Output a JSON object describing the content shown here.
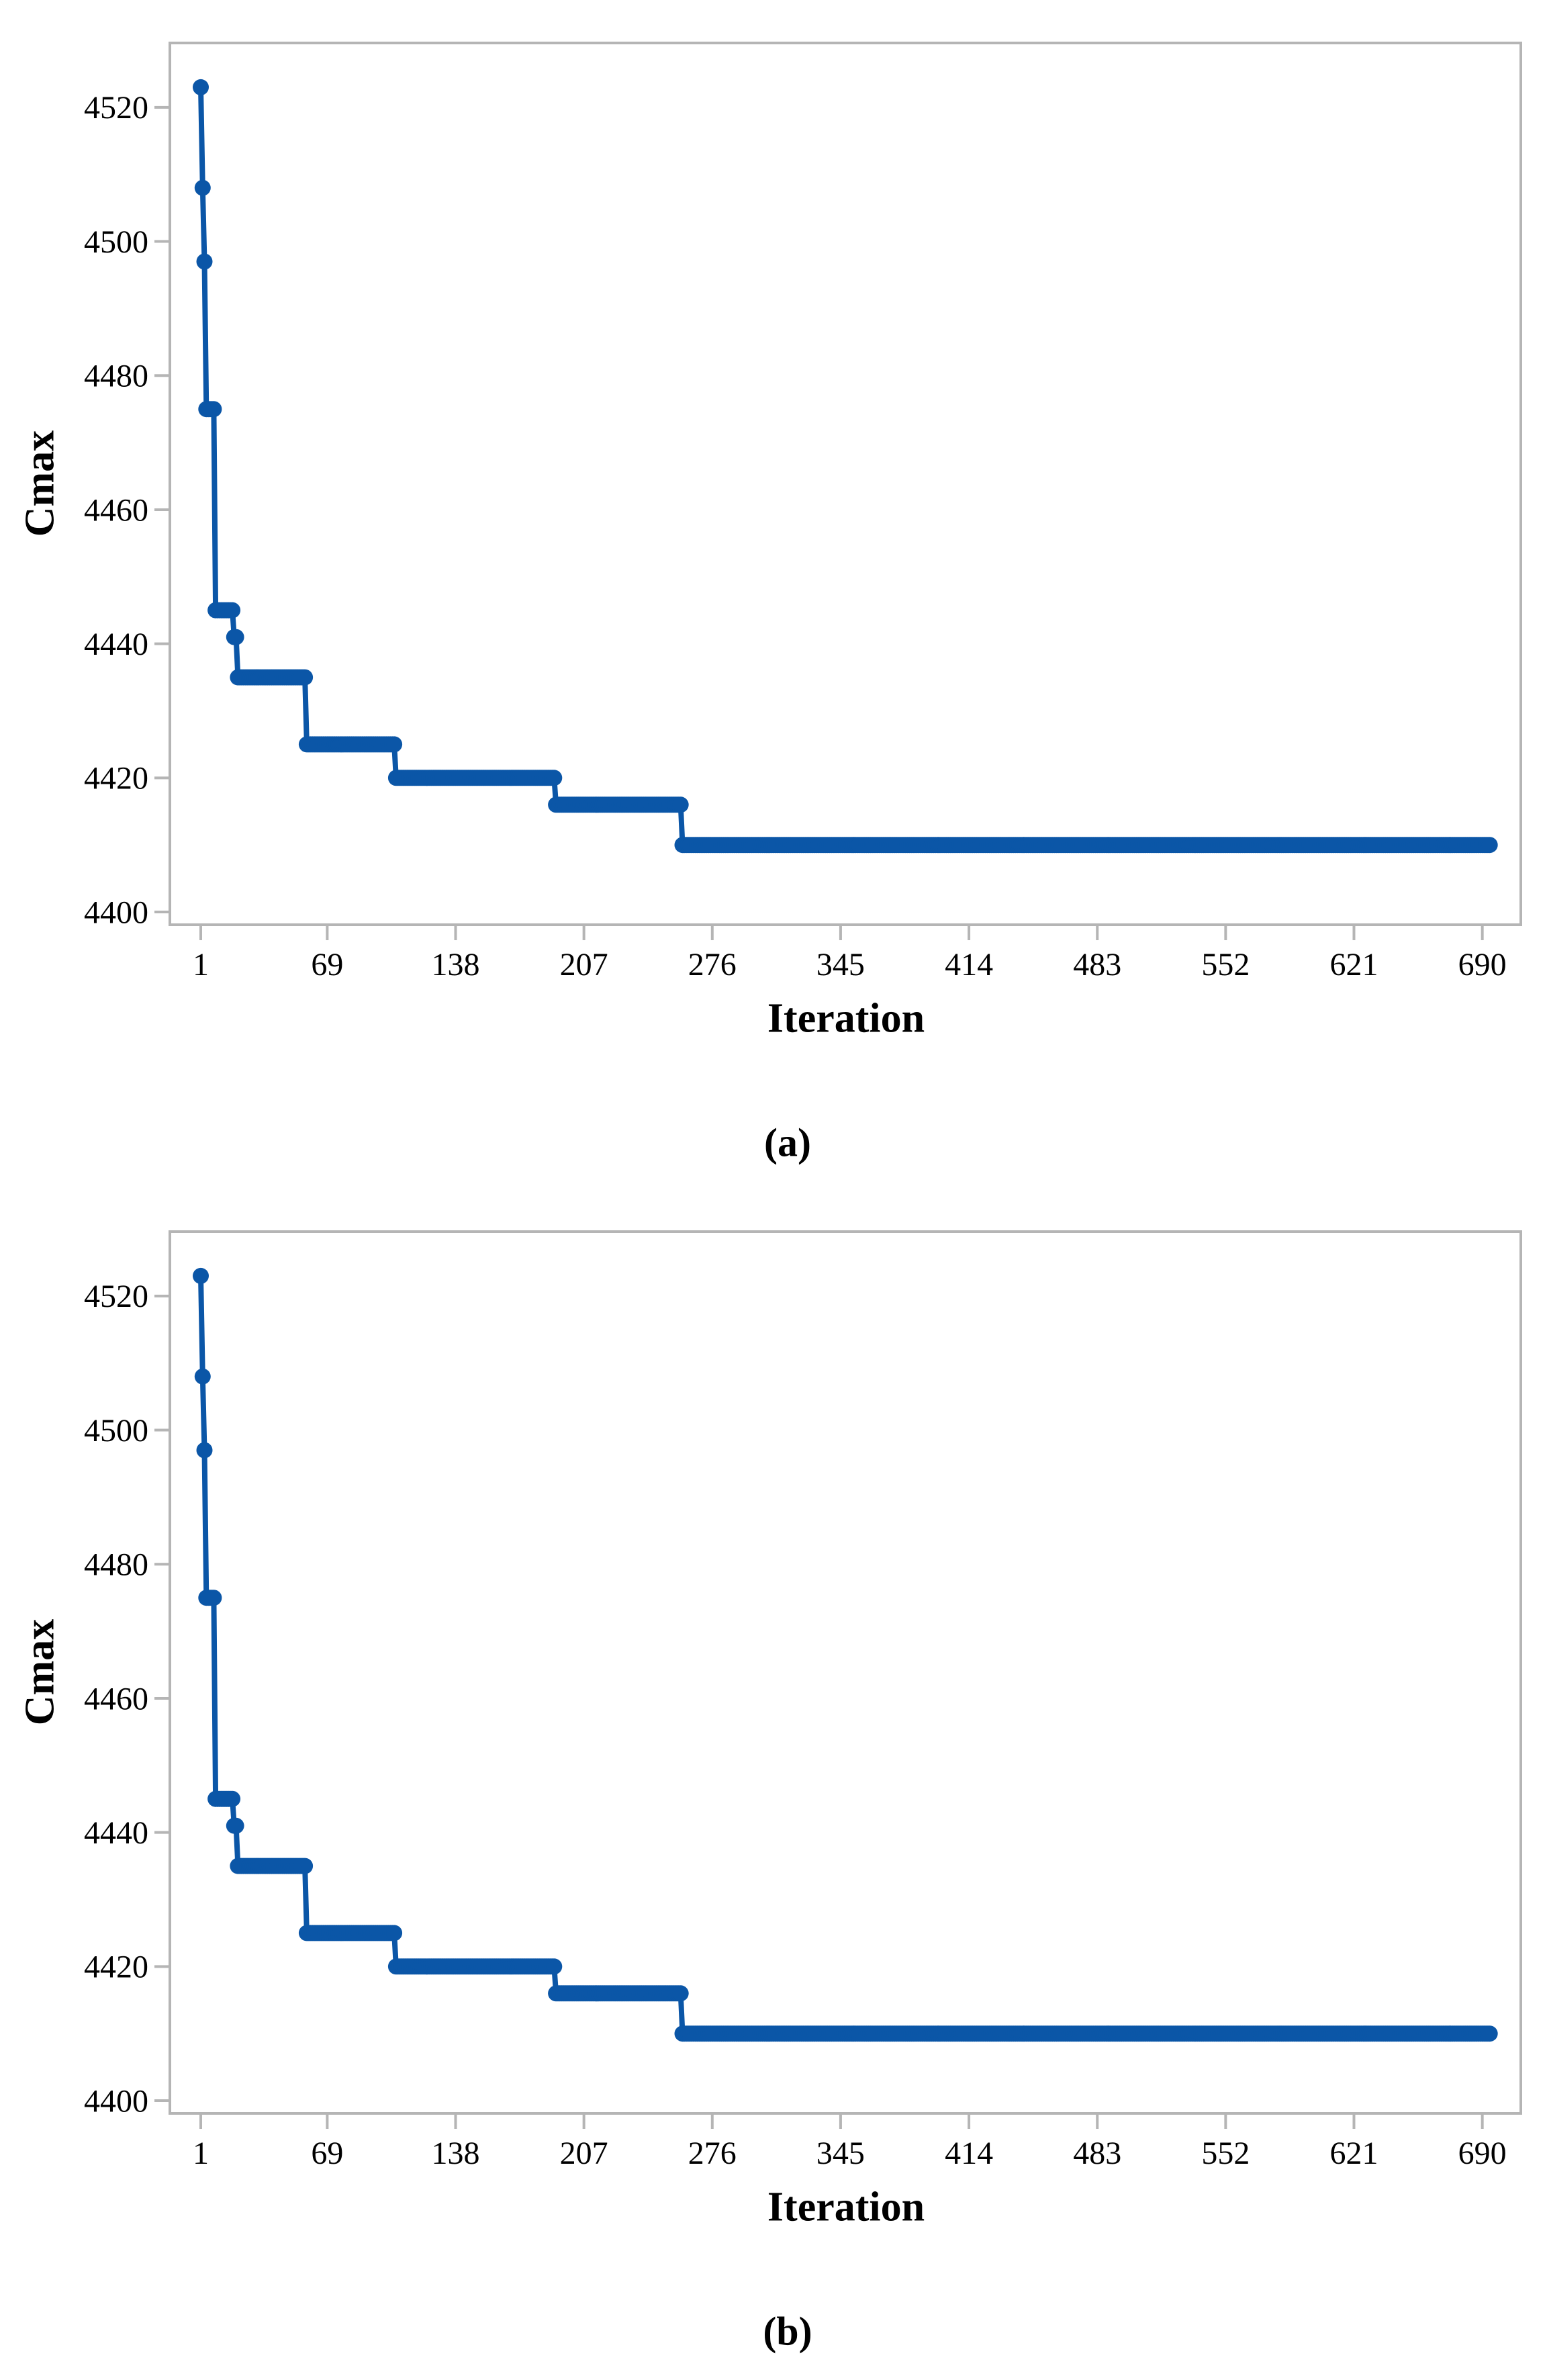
{
  "figure": {
    "background": "#ffffff",
    "axis_color": "#b5b5b5",
    "text_color": "#000000",
    "line_color": "#0b56a7"
  },
  "chart_data": [
    {
      "id": "a",
      "type": "line",
      "caption": "(a)",
      "xlabel": "Iteration",
      "ylabel": "Cmax",
      "grid": false,
      "legend": null,
      "marker": "circle",
      "line_color": "#0b56a7",
      "x_ticks": [
        1,
        69,
        138,
        207,
        276,
        345,
        414,
        483,
        552,
        621,
        690
      ],
      "y_ticks": [
        4400,
        4420,
        4440,
        4460,
        4480,
        4500,
        4520
      ],
      "xlim": [
        -15.6,
        710.7
      ],
      "ylim": [
        4398.1,
        4529.6
      ],
      "series": [
        {
          "name": "Cmax",
          "steps": [
            {
              "from": 1,
              "to": 1,
              "value": 4523
            },
            {
              "from": 2,
              "to": 2,
              "value": 4508
            },
            {
              "from": 3,
              "to": 3,
              "value": 4497
            },
            {
              "from": 4,
              "to": 8,
              "value": 4475
            },
            {
              "from": 9,
              "to": 18,
              "value": 4445
            },
            {
              "from": 19,
              "to": 20,
              "value": 4441
            },
            {
              "from": 21,
              "to": 57,
              "value": 4435
            },
            {
              "from": 58,
              "to": 105,
              "value": 4425
            },
            {
              "from": 106,
              "to": 191,
              "value": 4420
            },
            {
              "from": 192,
              "to": 259,
              "value": 4416
            },
            {
              "from": 260,
              "to": 694,
              "value": 4410
            }
          ]
        }
      ]
    },
    {
      "id": "b",
      "type": "line",
      "caption": "(b)",
      "xlabel": "Iteration",
      "ylabel": "Cmax",
      "grid": false,
      "legend": null,
      "marker": "circle",
      "line_color": "#0b56a7",
      "x_ticks": [
        1,
        69,
        138,
        207,
        276,
        345,
        414,
        483,
        552,
        621,
        690
      ],
      "y_ticks": [
        4400,
        4420,
        4440,
        4460,
        4480,
        4500,
        4520
      ],
      "xlim": [
        -15.6,
        710.7
      ],
      "ylim": [
        4398.1,
        4529.6
      ],
      "series": [
        {
          "name": "Cmax",
          "steps": [
            {
              "from": 1,
              "to": 1,
              "value": 4523
            },
            {
              "from": 2,
              "to": 2,
              "value": 4508
            },
            {
              "from": 3,
              "to": 3,
              "value": 4497
            },
            {
              "from": 4,
              "to": 8,
              "value": 4475
            },
            {
              "from": 9,
              "to": 18,
              "value": 4445
            },
            {
              "from": 19,
              "to": 20,
              "value": 4441
            },
            {
              "from": 21,
              "to": 57,
              "value": 4435
            },
            {
              "from": 58,
              "to": 105,
              "value": 4425
            },
            {
              "from": 106,
              "to": 191,
              "value": 4420
            },
            {
              "from": 192,
              "to": 259,
              "value": 4416
            },
            {
              "from": 260,
              "to": 694,
              "value": 4410
            }
          ]
        }
      ]
    }
  ]
}
